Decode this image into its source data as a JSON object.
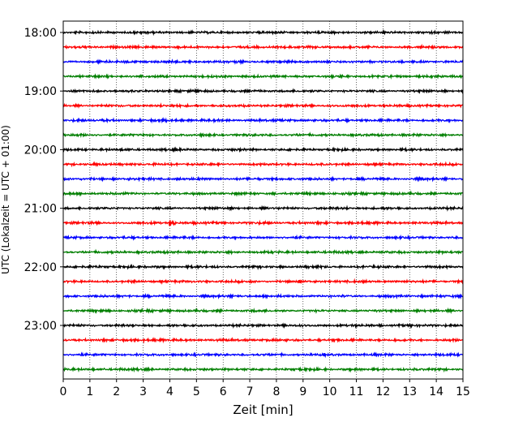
{
  "chart_data": {
    "type": "line",
    "title": "",
    "xlabel": "Zeit  [min]",
    "ylabel": "UTC (Lokalzeit = UTC + 01:00)",
    "xlim": [
      0,
      15
    ],
    "x_ticks": [
      "0",
      "1",
      "2",
      "3",
      "4",
      "5",
      "6",
      "7",
      "8",
      "9",
      "10",
      "11",
      "12",
      "13",
      "14",
      "15"
    ],
    "y_tick_labels": [
      "18:00",
      "19:00",
      "20:00",
      "21:00",
      "22:00",
      "23:00"
    ],
    "traces_per_hour": 4,
    "trace_minutes": 15,
    "grid": "vertical dotted lines at each minute",
    "legend": "none",
    "colors": [
      "#000000",
      "#ff0000",
      "#0000ff",
      "#007f00"
    ],
    "traces": [
      {
        "start": "18:00",
        "color": "#000000"
      },
      {
        "start": "18:15",
        "color": "#ff0000"
      },
      {
        "start": "18:30",
        "color": "#0000ff"
      },
      {
        "start": "18:45",
        "color": "#007f00"
      },
      {
        "start": "19:00",
        "color": "#000000"
      },
      {
        "start": "19:15",
        "color": "#ff0000"
      },
      {
        "start": "19:30",
        "color": "#0000ff"
      },
      {
        "start": "19:45",
        "color": "#007f00"
      },
      {
        "start": "20:00",
        "color": "#000000"
      },
      {
        "start": "20:15",
        "color": "#ff0000"
      },
      {
        "start": "20:30",
        "color": "#0000ff"
      },
      {
        "start": "20:45",
        "color": "#007f00"
      },
      {
        "start": "21:00",
        "color": "#000000"
      },
      {
        "start": "21:15",
        "color": "#ff0000",
        "event": {
          "minute": 4.1,
          "note": "larger amplitude burst"
        }
      },
      {
        "start": "21:30",
        "color": "#0000ff"
      },
      {
        "start": "21:45",
        "color": "#007f00"
      },
      {
        "start": "22:00",
        "color": "#000000"
      },
      {
        "start": "22:15",
        "color": "#ff0000"
      },
      {
        "start": "22:30",
        "color": "#0000ff"
      },
      {
        "start": "22:45",
        "color": "#007f00"
      },
      {
        "start": "23:00",
        "color": "#000000"
      },
      {
        "start": "23:15",
        "color": "#ff0000"
      },
      {
        "start": "23:30",
        "color": "#0000ff"
      },
      {
        "start": "23:45",
        "color": "#007f00"
      }
    ]
  }
}
